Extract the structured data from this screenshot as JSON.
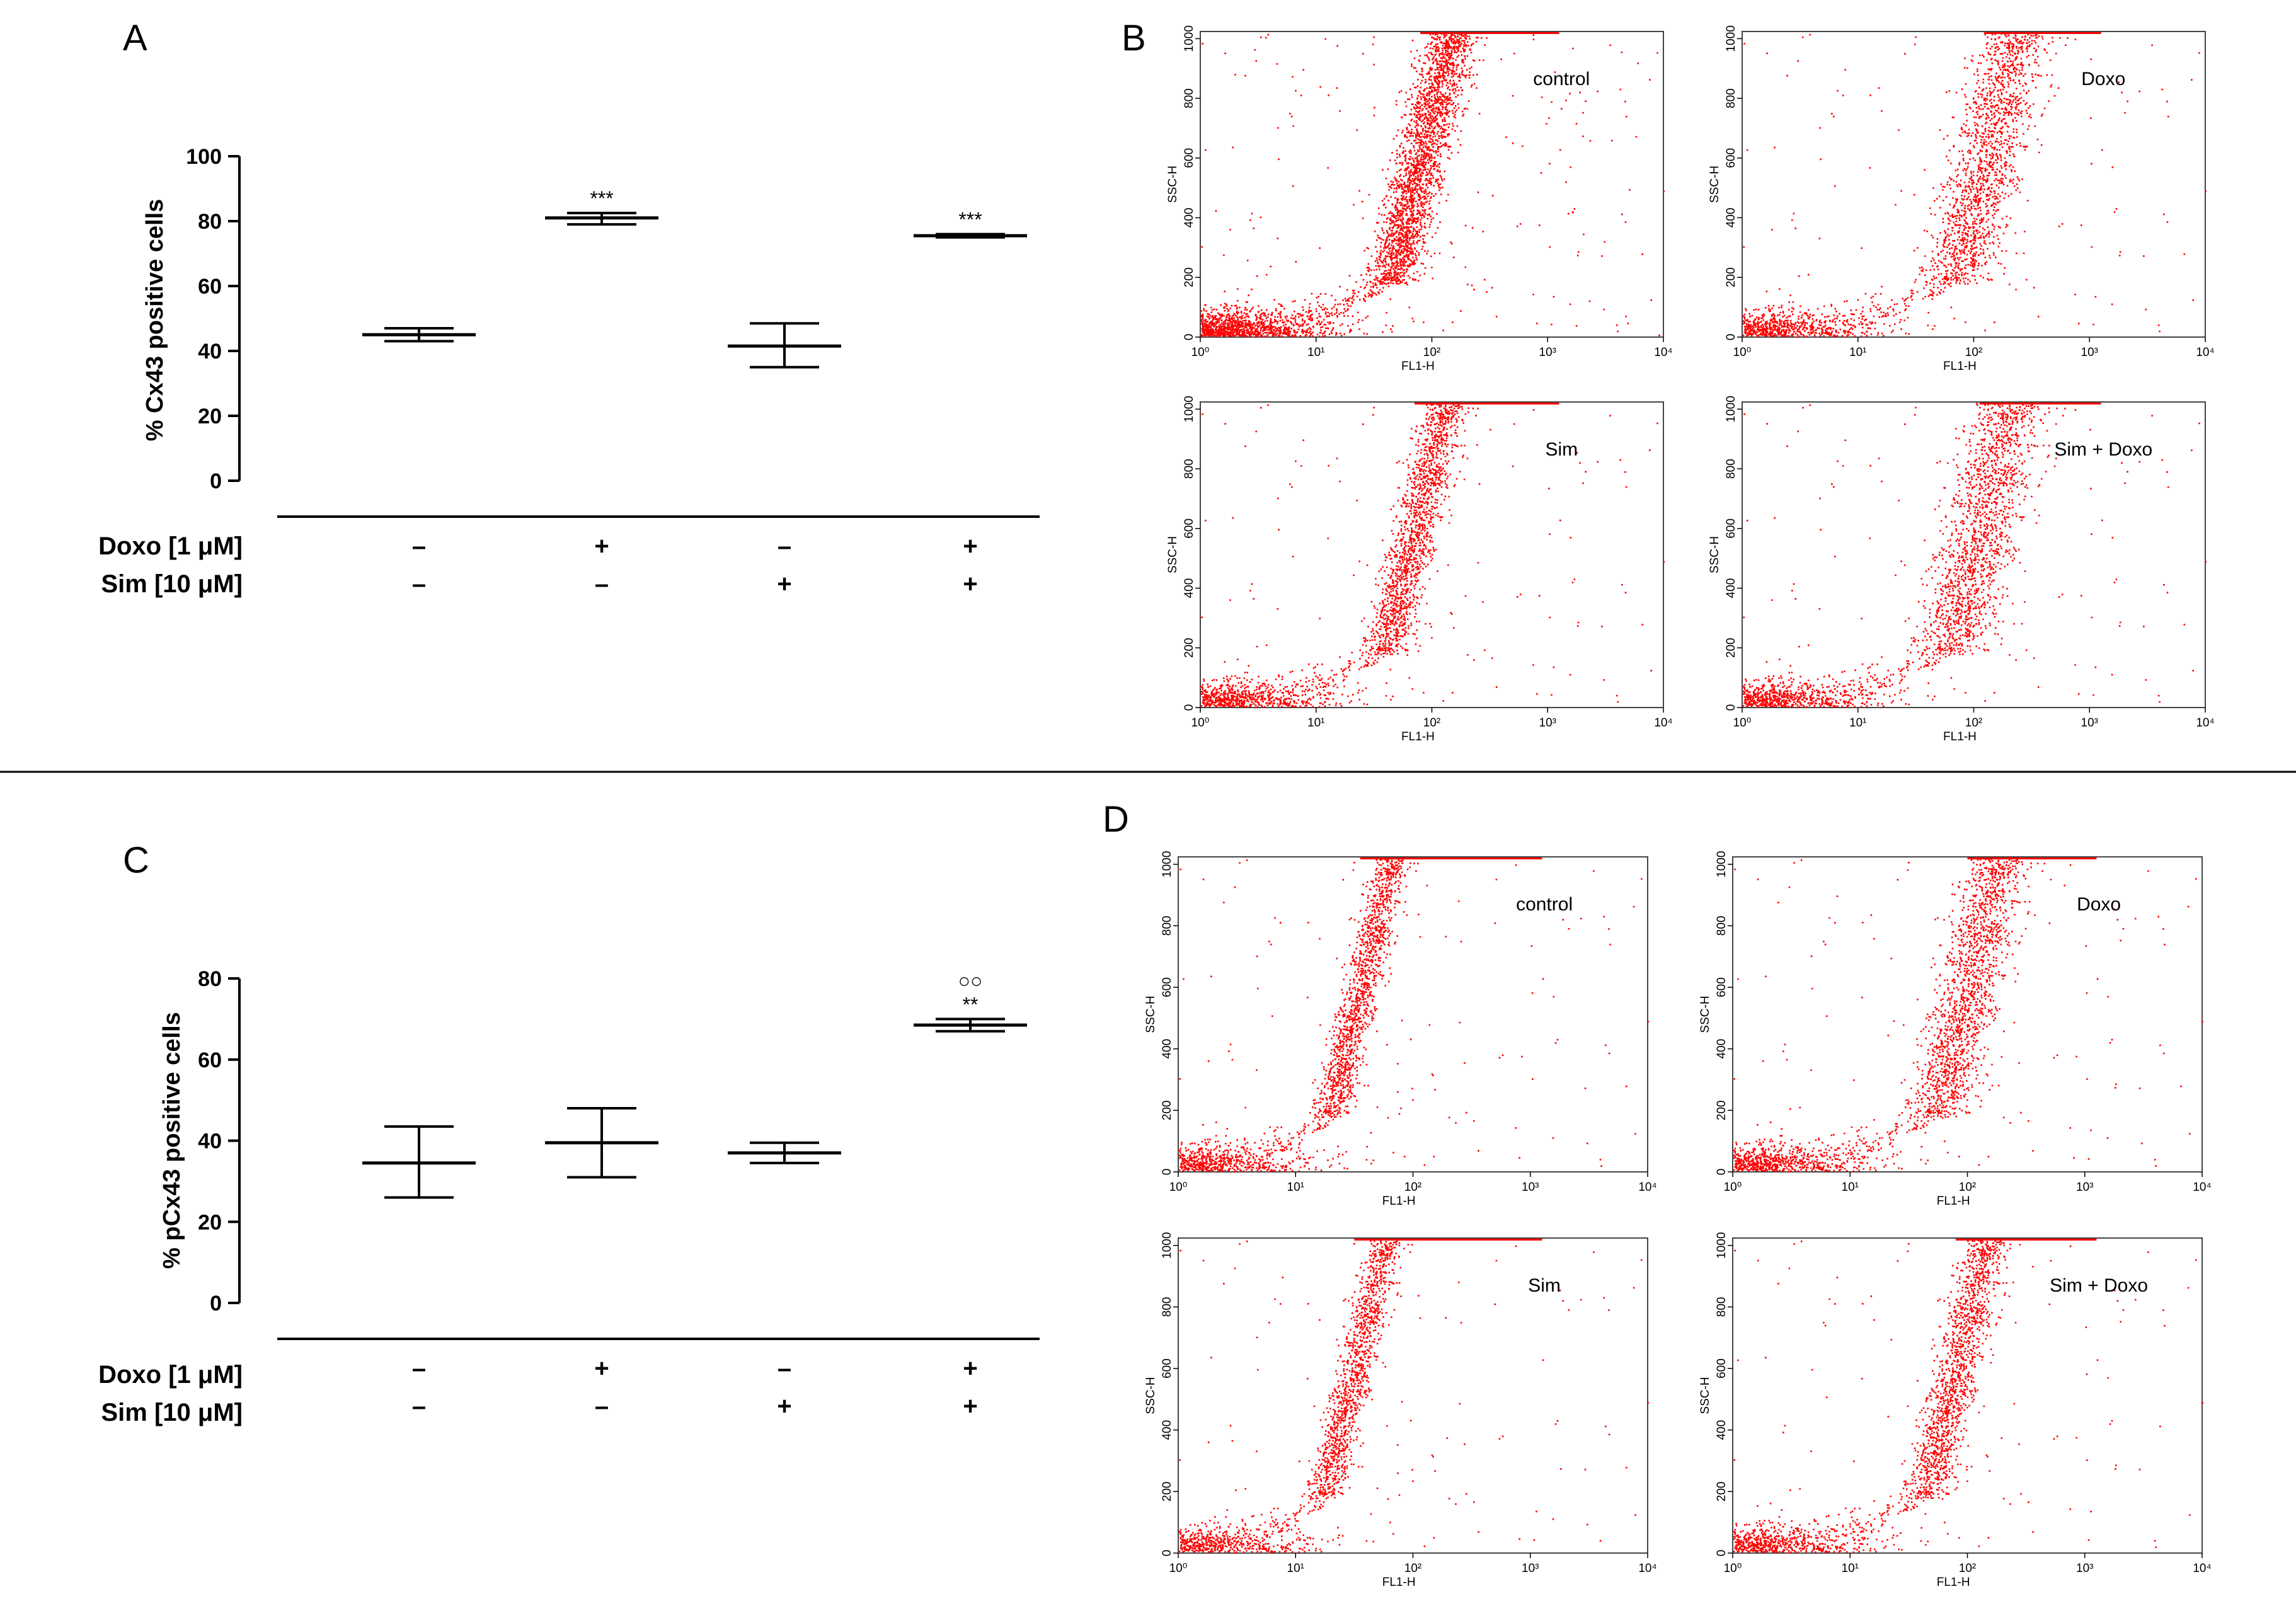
{
  "chart_data": [
    {
      "panel": "A",
      "type": "errorbar",
      "ylabel": "% Cx43 positive cells",
      "ylim": [
        0,
        100
      ],
      "yticks": [
        0,
        20,
        40,
        60,
        80,
        100
      ],
      "conditions": [
        {
          "label": "Doxo [1 μM]",
          "values": [
            "–",
            "+",
            "–",
            "+"
          ]
        },
        {
          "label": "Sim [10 μM]",
          "values": [
            "–",
            "–",
            "+",
            "+"
          ]
        }
      ],
      "groups": [
        {
          "mean": 45,
          "low": 43,
          "high": 47,
          "sig": ""
        },
        {
          "mean": 81,
          "low": 79,
          "high": 82.5,
          "sig": "***"
        },
        {
          "mean": 41.5,
          "low": 35,
          "high": 48.5,
          "sig": ""
        },
        {
          "mean": 75.5,
          "low": 75,
          "high": 76,
          "sig": "***"
        }
      ]
    },
    {
      "panel": "C",
      "type": "errorbar",
      "ylabel": "% pCx43 positive cells",
      "ylim": [
        0,
        80
      ],
      "yticks": [
        0,
        20,
        40,
        60,
        80
      ],
      "conditions": [
        {
          "label": "Doxo [1 μM]",
          "values": [
            "–",
            "+",
            "–",
            "+"
          ]
        },
        {
          "label": "Sim [10 μM]",
          "values": [
            "–",
            "–",
            "+",
            "+"
          ]
        }
      ],
      "groups": [
        {
          "mean": 34.5,
          "low": 26,
          "high": 43.5,
          "sig": ""
        },
        {
          "mean": 39.5,
          "low": 31,
          "high": 48,
          "sig": ""
        },
        {
          "mean": 37,
          "low": 34.5,
          "high": 39.5,
          "sig": ""
        },
        {
          "mean": 68.5,
          "low": 67,
          "high": 70,
          "sig": "**",
          "sig2": "○○"
        }
      ]
    },
    {
      "panel": "B",
      "type": "scatter",
      "xlabel": "FL1-H",
      "ylabel": "SSC-H",
      "xscale": "log",
      "xlim": [
        1,
        10000
      ],
      "ylim": [
        0,
        1024
      ],
      "xticks": [
        "10⁰",
        "10¹",
        "10²",
        "10³",
        "10⁴"
      ],
      "yticks": [
        "0",
        "200",
        "400",
        "600",
        "800",
        "1000"
      ],
      "plots": [
        {
          "label": "control",
          "center_log": 1.85,
          "spread": 0.11,
          "density": 4200
        },
        {
          "label": "Doxo",
          "center_log": 2.05,
          "spread": 0.16,
          "density": 5200
        },
        {
          "label": "Sim",
          "center_log": 1.8,
          "spread": 0.1,
          "density": 3800
        },
        {
          "label": "Sim + Doxo",
          "center_log": 2.0,
          "spread": 0.17,
          "density": 5400
        }
      ]
    },
    {
      "panel": "D",
      "type": "scatter",
      "xlabel": "FL1-H",
      "ylabel": "SSC-H",
      "xscale": "log",
      "xlim": [
        1,
        10000
      ],
      "ylim": [
        0,
        1024
      ],
      "xticks": [
        "10⁰",
        "10¹",
        "10²",
        "10³",
        "10⁴"
      ],
      "yticks": [
        "0",
        "200",
        "400",
        "600",
        "800",
        "1000"
      ],
      "plots": [
        {
          "label": "control",
          "center_log": 1.5,
          "spread": 0.08,
          "density": 2200
        },
        {
          "label": "Doxo",
          "center_log": 1.95,
          "spread": 0.14,
          "density": 2600
        },
        {
          "label": "Sim",
          "center_log": 1.45,
          "spread": 0.08,
          "density": 2000
        },
        {
          "label": "Sim + Doxo",
          "center_log": 1.85,
          "spread": 0.1,
          "density": 2300
        }
      ]
    }
  ],
  "colors": {
    "dots": "#ff0000",
    "axis": "#000000",
    "frame": "#444444"
  }
}
